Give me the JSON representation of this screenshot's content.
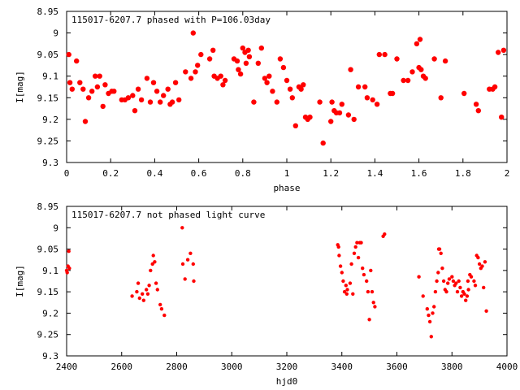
{
  "chart_data": [
    {
      "type": "scatter",
      "title": "115017-6207.7 phased with P=106.03day",
      "xlabel": "phase",
      "ylabel": "I[mag]",
      "xlim": [
        0,
        2
      ],
      "ylim": [
        8.95,
        9.3
      ],
      "y_inverted": true,
      "grid": false,
      "marker_color": "#ff0000",
      "marker": "filled-circle",
      "xticks": [
        "0",
        "0.2",
        "0.4",
        "0.6",
        "0.8",
        "1",
        "1.2",
        "1.4",
        "1.6",
        "1.8",
        "2"
      ],
      "yticks": [
        "8.95",
        "9",
        "9.05",
        "9.1",
        "9.15",
        "9.2",
        "9.25",
        "9.3"
      ],
      "points": [
        [
          0.01,
          9.05
        ],
        [
          0.015,
          9.115
        ],
        [
          0.025,
          9.13
        ],
        [
          0.045,
          9.065
        ],
        [
          0.06,
          9.115
        ],
        [
          0.075,
          9.13
        ],
        [
          0.085,
          9.205
        ],
        [
          0.1,
          9.15
        ],
        [
          0.115,
          9.135
        ],
        [
          0.13,
          9.1
        ],
        [
          0.14,
          9.125
        ],
        [
          0.15,
          9.1
        ],
        [
          0.165,
          9.17
        ],
        [
          0.175,
          9.12
        ],
        [
          0.19,
          9.14
        ],
        [
          0.205,
          9.135
        ],
        [
          0.215,
          9.135
        ],
        [
          0.25,
          9.155
        ],
        [
          0.265,
          9.155
        ],
        [
          0.28,
          9.15
        ],
        [
          0.3,
          9.145
        ],
        [
          0.31,
          9.18
        ],
        [
          0.325,
          9.13
        ],
        [
          0.34,
          9.155
        ],
        [
          0.365,
          9.105
        ],
        [
          0.38,
          9.16
        ],
        [
          0.395,
          9.115
        ],
        [
          0.41,
          9.135
        ],
        [
          0.425,
          9.16
        ],
        [
          0.44,
          9.145
        ],
        [
          0.46,
          9.13
        ],
        [
          0.47,
          9.165
        ],
        [
          0.48,
          9.16
        ],
        [
          0.495,
          9.115
        ],
        [
          0.51,
          9.155
        ],
        [
          0.54,
          9.09
        ],
        [
          0.565,
          9.105
        ],
        [
          0.575,
          9.0
        ],
        [
          0.585,
          9.09
        ],
        [
          0.595,
          9.075
        ],
        [
          0.61,
          9.05
        ],
        [
          0.65,
          9.06
        ],
        [
          0.665,
          9.04
        ],
        [
          0.67,
          9.1
        ],
        [
          0.685,
          9.105
        ],
        [
          0.7,
          9.1
        ],
        [
          0.71,
          9.12
        ],
        [
          0.72,
          9.11
        ],
        [
          0.76,
          9.06
        ],
        [
          0.775,
          9.065
        ],
        [
          0.78,
          9.085
        ],
        [
          0.79,
          9.095
        ],
        [
          0.8,
          9.035
        ],
        [
          0.81,
          9.045
        ],
        [
          0.815,
          9.07
        ],
        [
          0.825,
          9.04
        ],
        [
          0.83,
          9.055
        ],
        [
          0.85,
          9.16
        ],
        [
          0.87,
          9.07
        ],
        [
          0.885,
          9.035
        ],
        [
          0.9,
          9.105
        ],
        [
          0.91,
          9.115
        ],
        [
          0.92,
          9.1
        ],
        [
          0.935,
          9.135
        ],
        [
          0.955,
          9.16
        ],
        [
          0.97,
          9.06
        ],
        [
          0.985,
          9.08
        ],
        [
          1.0,
          9.11
        ],
        [
          1.015,
          9.13
        ],
        [
          1.025,
          9.15
        ],
        [
          1.04,
          9.215
        ],
        [
          1.055,
          9.125
        ],
        [
          1.065,
          9.13
        ],
        [
          1.075,
          9.12
        ],
        [
          1.085,
          9.195
        ],
        [
          1.095,
          9.2
        ],
        [
          1.105,
          9.195
        ],
        [
          1.15,
          9.16
        ],
        [
          1.165,
          9.255
        ],
        [
          1.2,
          9.205
        ],
        [
          1.205,
          9.16
        ],
        [
          1.215,
          9.18
        ],
        [
          1.225,
          9.185
        ],
        [
          1.24,
          9.185
        ],
        [
          1.25,
          9.165
        ],
        [
          1.28,
          9.19
        ],
        [
          1.29,
          9.085
        ],
        [
          1.305,
          9.2
        ],
        [
          1.325,
          9.125
        ],
        [
          1.355,
          9.125
        ],
        [
          1.365,
          9.15
        ],
        [
          1.39,
          9.155
        ],
        [
          1.41,
          9.165
        ],
        [
          1.42,
          9.05
        ],
        [
          1.445,
          9.05
        ],
        [
          1.47,
          9.14
        ],
        [
          1.48,
          9.14
        ],
        [
          1.5,
          9.06
        ],
        [
          1.53,
          9.11
        ],
        [
          1.55,
          9.11
        ],
        [
          1.57,
          9.09
        ],
        [
          1.59,
          9.025
        ],
        [
          1.6,
          9.08
        ],
        [
          1.605,
          9.015
        ],
        [
          1.61,
          9.085
        ],
        [
          1.62,
          9.1
        ],
        [
          1.63,
          9.105
        ],
        [
          1.67,
          9.06
        ],
        [
          1.7,
          9.15
        ],
        [
          1.72,
          9.065
        ],
        [
          1.805,
          9.14
        ],
        [
          1.86,
          9.165
        ],
        [
          1.87,
          9.18
        ],
        [
          1.92,
          9.13
        ],
        [
          1.935,
          9.13
        ],
        [
          1.945,
          9.125
        ],
        [
          1.96,
          9.045
        ],
        [
          1.975,
          9.195
        ],
        [
          1.985,
          9.04
        ]
      ]
    },
    {
      "type": "scatter",
      "title": "115017-6207.7 not phased light curve",
      "xlabel": "hjd0",
      "ylabel": "I[mag]",
      "xlim": [
        2400,
        4000
      ],
      "ylim": [
        8.95,
        9.3
      ],
      "y_inverted": true,
      "grid": false,
      "marker_color": "#ff0000",
      "marker": "small-circle",
      "xticks": [
        "2400",
        "2600",
        "2800",
        "3000",
        "3200",
        "3400",
        "3600",
        "3800",
        "4000"
      ],
      "yticks": [
        "8.95",
        "9",
        "9.05",
        "9.1",
        "9.15",
        "9.2",
        "9.25",
        "9.3"
      ],
      "points": [
        [
          2400,
          9.1
        ],
        [
          2402,
          9.105
        ],
        [
          2405,
          9.09
        ],
        [
          2408,
          9.055
        ],
        [
          2410,
          9.095
        ],
        [
          2638,
          9.16
        ],
        [
          2655,
          9.15
        ],
        [
          2660,
          9.13
        ],
        [
          2665,
          9.165
        ],
        [
          2675,
          9.155
        ],
        [
          2680,
          9.17
        ],
        [
          2690,
          9.145
        ],
        [
          2695,
          9.155
        ],
        [
          2700,
          9.135
        ],
        [
          2705,
          9.1
        ],
        [
          2712,
          9.085
        ],
        [
          2715,
          9.065
        ],
        [
          2720,
          9.08
        ],
        [
          2725,
          9.13
        ],
        [
          2730,
          9.145
        ],
        [
          2740,
          9.18
        ],
        [
          2745,
          9.19
        ],
        [
          2755,
          9.205
        ],
        [
          2820,
          9.0
        ],
        [
          2822,
          9.085
        ],
        [
          2830,
          9.12
        ],
        [
          2840,
          9.075
        ],
        [
          2850,
          9.06
        ],
        [
          2860,
          9.085
        ],
        [
          2862,
          9.125
        ],
        [
          3385,
          9.04
        ],
        [
          3388,
          9.045
        ],
        [
          3390,
          9.065
        ],
        [
          3395,
          9.09
        ],
        [
          3400,
          9.105
        ],
        [
          3405,
          9.125
        ],
        [
          3410,
          9.15
        ],
        [
          3415,
          9.135
        ],
        [
          3418,
          9.155
        ],
        [
          3420,
          9.145
        ],
        [
          3430,
          9.13
        ],
        [
          3435,
          9.085
        ],
        [
          3440,
          9.155
        ],
        [
          3445,
          9.06
        ],
        [
          3450,
          9.045
        ],
        [
          3455,
          9.035
        ],
        [
          3460,
          9.07
        ],
        [
          3465,
          9.035
        ],
        [
          3470,
          9.035
        ],
        [
          3475,
          9.095
        ],
        [
          3480,
          9.11
        ],
        [
          3490,
          9.125
        ],
        [
          3495,
          9.15
        ],
        [
          3500,
          9.215
        ],
        [
          3505,
          9.1
        ],
        [
          3510,
          9.15
        ],
        [
          3515,
          9.175
        ],
        [
          3520,
          9.185
        ],
        [
          3550,
          9.02
        ],
        [
          3555,
          9.015
        ],
        [
          3680,
          9.115
        ],
        [
          3695,
          9.16
        ],
        [
          3710,
          9.19
        ],
        [
          3715,
          9.205
        ],
        [
          3720,
          9.22
        ],
        [
          3725,
          9.255
        ],
        [
          3730,
          9.2
        ],
        [
          3735,
          9.185
        ],
        [
          3740,
          9.15
        ],
        [
          3745,
          9.125
        ],
        [
          3750,
          9.105
        ],
        [
          3752,
          9.05
        ],
        [
          3755,
          9.05
        ],
        [
          3760,
          9.06
        ],
        [
          3765,
          9.095
        ],
        [
          3770,
          9.125
        ],
        [
          3775,
          9.145
        ],
        [
          3780,
          9.15
        ],
        [
          3785,
          9.13
        ],
        [
          3790,
          9.12
        ],
        [
          3800,
          9.115
        ],
        [
          3805,
          9.125
        ],
        [
          3810,
          9.135
        ],
        [
          3815,
          9.13
        ],
        [
          3820,
          9.15
        ],
        [
          3825,
          9.125
        ],
        [
          3830,
          9.14
        ],
        [
          3835,
          9.16
        ],
        [
          3840,
          9.15
        ],
        [
          3845,
          9.155
        ],
        [
          3850,
          9.17
        ],
        [
          3855,
          9.16
        ],
        [
          3858,
          9.125
        ],
        [
          3860,
          9.145
        ],
        [
          3865,
          9.11
        ],
        [
          3870,
          9.115
        ],
        [
          3880,
          9.125
        ],
        [
          3885,
          9.135
        ],
        [
          3890,
          9.065
        ],
        [
          3895,
          9.07
        ],
        [
          3900,
          9.085
        ],
        [
          3905,
          9.095
        ],
        [
          3910,
          9.09
        ],
        [
          3915,
          9.14
        ],
        [
          3920,
          9.08
        ],
        [
          3925,
          9.195
        ]
      ]
    }
  ]
}
